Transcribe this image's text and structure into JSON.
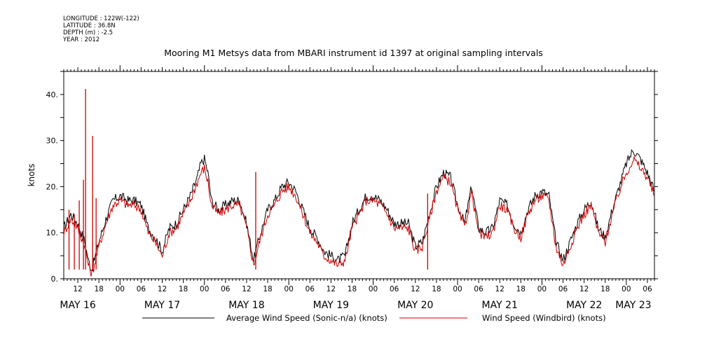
{
  "meta": {
    "longitude": "LONGITUDE : 122W(-122)",
    "latitude": "LATITUDE : 36.8N",
    "depth": "DEPTH (m) : -2.5",
    "year": "YEAR : 2012"
  },
  "chart_data": {
    "type": "line",
    "title": "Mooring M1 Metsys data from MBARI instrument id 1397 at original sampling intervals",
    "xlabel": "",
    "ylabel": "knots",
    "ylim": [
      0,
      45
    ],
    "y_ticks": [
      0,
      10,
      20,
      30,
      40
    ],
    "y_tick_labels": [
      "0.",
      "10.",
      "20.",
      "30.",
      "40."
    ],
    "x_unit": "hours since MAY 16 00:00",
    "xlim": [
      8,
      176
    ],
    "hour_tick_labels": [
      "12",
      "18",
      "00",
      "06",
      "12",
      "18",
      "00",
      "06",
      "12",
      "18",
      "00",
      "06",
      "12",
      "18",
      "00",
      "06",
      "12",
      "18",
      "00",
      "06",
      "12",
      "18",
      "00",
      "06",
      "12",
      "18",
      "00",
      "06"
    ],
    "day_labels": [
      "MAY 16",
      "MAY 17",
      "MAY 18",
      "MAY 19",
      "MAY 20",
      "MAY 21",
      "MAY 22",
      "MAY 23"
    ],
    "grid": false,
    "legend_position": "bottom",
    "series": [
      {
        "name": "Average Wind Speed (Sonic-n/a) (knots)",
        "color": "#000000",
        "x": [
          8,
          10,
          12,
          14,
          15,
          16,
          17,
          18,
          20,
          22,
          24,
          26,
          28,
          30,
          32,
          34,
          36,
          38,
          40,
          42,
          44,
          46,
          47,
          48,
          49,
          50,
          52,
          54,
          56,
          58,
          60,
          62,
          64,
          66,
          68,
          70,
          72,
          74,
          76,
          78,
          80,
          82,
          84,
          86,
          88,
          90,
          92,
          94,
          96,
          98,
          100,
          102,
          104,
          106,
          108,
          110,
          112,
          114,
          116,
          118,
          120,
          122,
          124,
          126,
          128,
          130,
          132,
          134,
          136,
          138,
          140,
          142,
          144,
          146,
          148,
          150,
          152,
          154,
          156,
          158,
          160,
          162,
          164,
          166,
          168,
          170,
          172,
          174,
          176
        ],
        "y": [
          11,
          14,
          12,
          8,
          4,
          2,
          5,
          8,
          13,
          17,
          18,
          17,
          17,
          16,
          11,
          9,
          6,
          11,
          12,
          15,
          18,
          22,
          25,
          26,
          23,
          17,
          15,
          16,
          17,
          17,
          12,
          4,
          10,
          15,
          17,
          20,
          21,
          19,
          15,
          11,
          9,
          6,
          5,
          4,
          5,
          12,
          15,
          18,
          18,
          17,
          15,
          12,
          12,
          12,
          7,
          8,
          14,
          20,
          23,
          22,
          16,
          12,
          20,
          11,
          10,
          11,
          17,
          16,
          12,
          10,
          15,
          18,
          19,
          18,
          8,
          4,
          8,
          12,
          15,
          17,
          11,
          9,
          15,
          20,
          25,
          28,
          26,
          23,
          19
        ],
        "note": ""
      },
      {
        "name": "Wind Speed (Windbird) (knots)",
        "color": "#cc0000",
        "x": [
          8,
          10,
          12,
          14,
          15,
          16,
          17,
          18,
          20,
          22,
          24,
          26,
          28,
          30,
          32,
          34,
          36,
          38,
          40,
          42,
          44,
          46,
          47,
          48,
          49,
          50,
          52,
          54,
          56,
          58,
          60,
          62,
          64,
          66,
          68,
          70,
          72,
          74,
          76,
          78,
          80,
          82,
          84,
          86,
          88,
          90,
          92,
          94,
          96,
          98,
          100,
          102,
          104,
          106,
          108,
          110,
          112,
          114,
          116,
          118,
          120,
          122,
          124,
          126,
          128,
          130,
          132,
          134,
          136,
          138,
          140,
          142,
          144,
          146,
          148,
          150,
          152,
          154,
          156,
          158,
          160,
          162,
          164,
          166,
          168,
          170,
          172,
          174,
          176
        ],
        "y": [
          10,
          13,
          11,
          7,
          3,
          1,
          4,
          7,
          12,
          16,
          17,
          16,
          16,
          15,
          10,
          8,
          5,
          10,
          11,
          14,
          17,
          21,
          23,
          24,
          21,
          16,
          14,
          15,
          16,
          16,
          11,
          3,
          9,
          14,
          16,
          19,
          20,
          18,
          14,
          10,
          8,
          5,
          4,
          3,
          4,
          11,
          14,
          17,
          17,
          16,
          14,
          11,
          11,
          11,
          6,
          7,
          13,
          19,
          22,
          21,
          15,
          11,
          19,
          10,
          9,
          10,
          16,
          15,
          11,
          9,
          14,
          17,
          18,
          17,
          7,
          3,
          7,
          11,
          14,
          16,
          10,
          8,
          14,
          19,
          23,
          26,
          24,
          22,
          18
        ],
        "spikes": [
          [
            14.2,
            41.2
          ],
          [
            13.6,
            21.5
          ],
          [
            12.4,
            17.0
          ],
          [
            16.2,
            31.0
          ],
          [
            17.2,
            17.5
          ],
          [
            9.5,
            15.0
          ],
          [
            11.0,
            14.0
          ],
          [
            62.6,
            23.2
          ],
          [
            111.5,
            18.5
          ]
        ]
      }
    ]
  }
}
